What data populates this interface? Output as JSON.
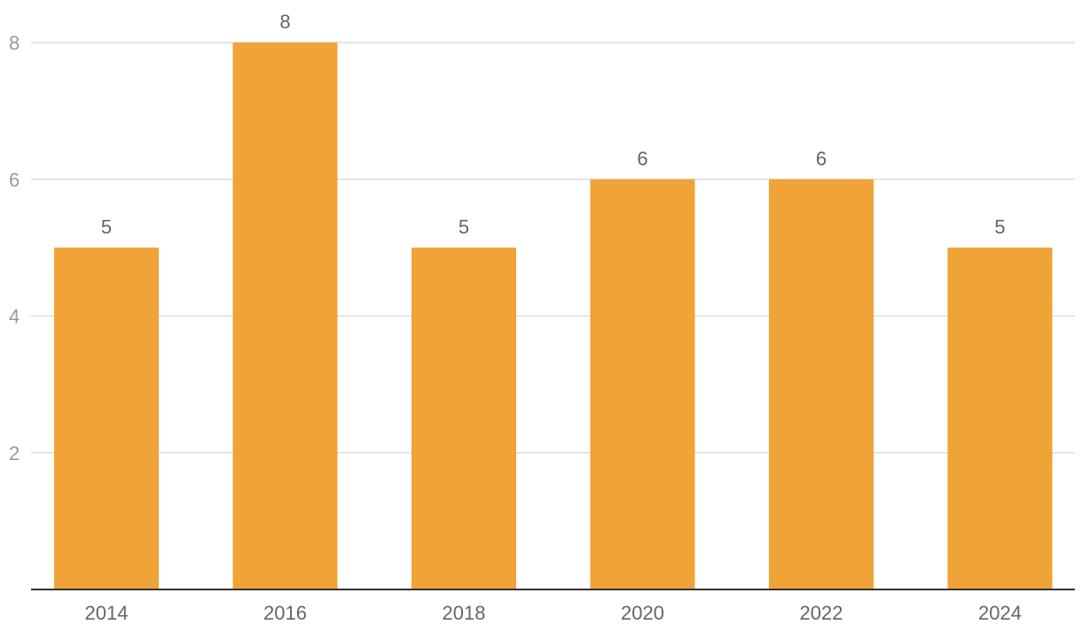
{
  "chart_data": {
    "type": "bar",
    "title": "",
    "xlabel": "",
    "ylabel": "",
    "categories": [
      "2014",
      "2016",
      "2018",
      "2020",
      "2022",
      "2024"
    ],
    "values": [
      5,
      8,
      5,
      6,
      6,
      5
    ],
    "data_labels": [
      "5",
      "8",
      "5",
      "6",
      "6",
      "5"
    ],
    "ylim": [
      0,
      8
    ],
    "y_ticks": [
      2,
      4,
      6,
      8
    ],
    "y_tick_labels": [
      "2",
      "4",
      "6",
      "8"
    ],
    "bar_color": "#f0a336",
    "grid": true,
    "legend": "none"
  }
}
